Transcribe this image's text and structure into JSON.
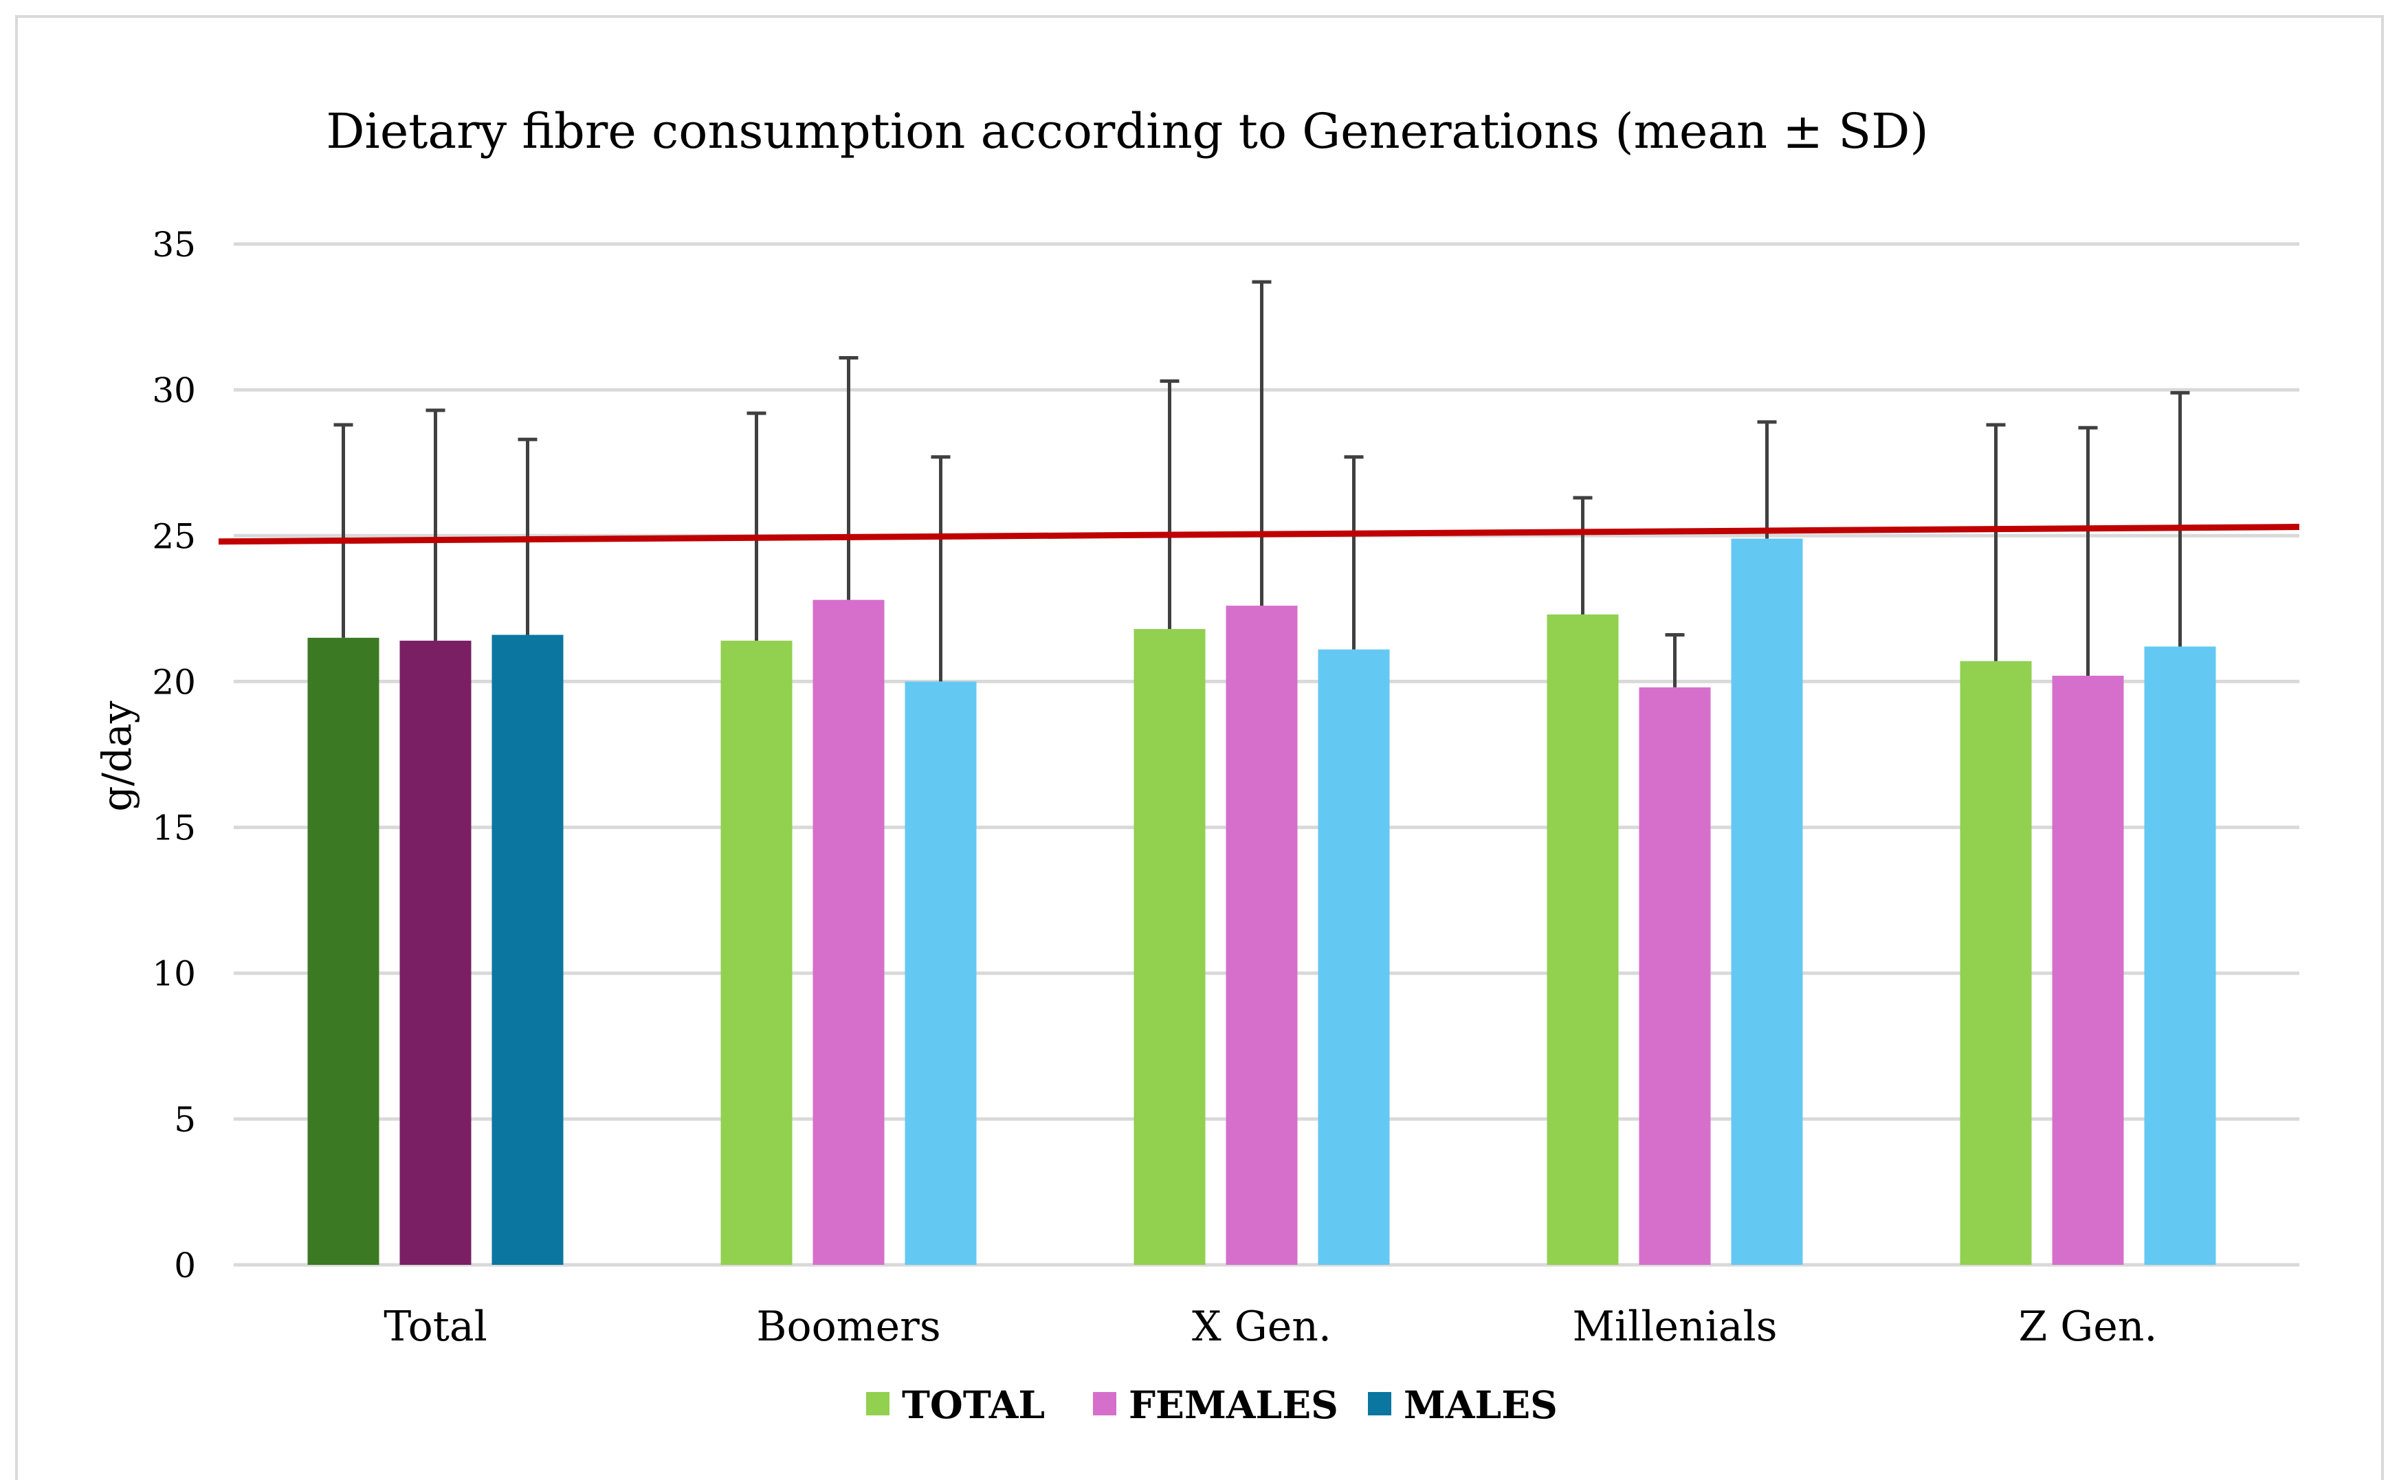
{
  "chart_data": {
    "type": "bar",
    "title": "Dietary fibre consumption according to Generations (mean ± SD)",
    "ylabel": "g/day",
    "xlabel": "",
    "ylim": [
      0,
      35
    ],
    "yticks": [
      0,
      5,
      10,
      15,
      20,
      25,
      30,
      35
    ],
    "grid": true,
    "legend_position": "bottom",
    "categories": [
      "Total",
      "Boomers",
      "X Gen.",
      "Millenials",
      "Z Gen."
    ],
    "series": [
      {
        "name": "TOTAL",
        "color": "#92d050",
        "highlight_color": "#3b7a23",
        "values": [
          21.5,
          21.4,
          21.8,
          22.3,
          20.7
        ],
        "sd": [
          7.3,
          7.8,
          8.5,
          4.0,
          8.1
        ]
      },
      {
        "name": "FEMALES",
        "color": "#d66fcb",
        "highlight_color": "#7a1f64",
        "values": [
          21.4,
          22.8,
          22.6,
          19.8,
          20.2
        ],
        "sd": [
          7.9,
          8.3,
          11.1,
          1.8,
          8.5
        ]
      },
      {
        "name": "MALES",
        "color": "#63c9f2",
        "highlight_color": "#0b76a0",
        "legend_color": "#0b76a0",
        "values": [
          21.6,
          20.0,
          21.1,
          24.9,
          21.2
        ],
        "sd": [
          6.7,
          7.7,
          6.6,
          4.0,
          8.7
        ]
      }
    ],
    "reference_line": {
      "color": "#c00000",
      "y_start": 24.8,
      "y_end": 25.3
    },
    "colors": {
      "grid": "#d9d9d9",
      "error_bar": "#404040"
    }
  }
}
